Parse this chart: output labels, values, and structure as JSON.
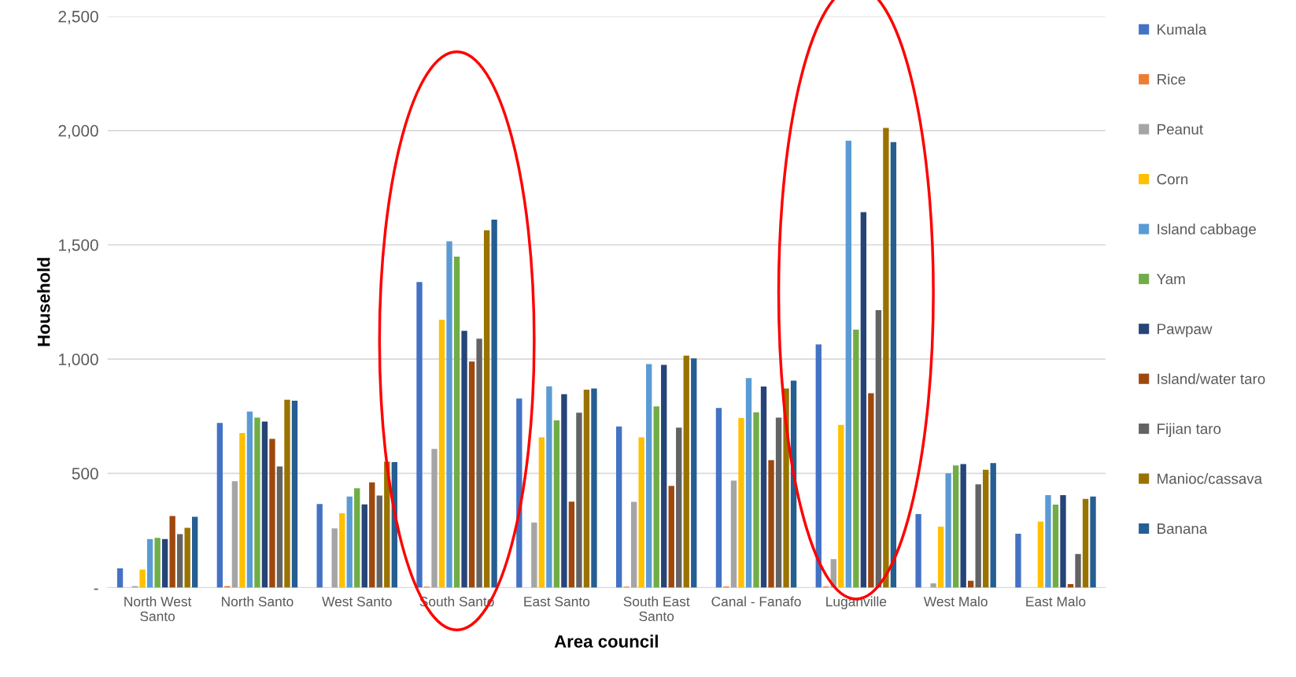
{
  "chart_data": {
    "type": "bar",
    "xlabel": "Area council",
    "ylabel": "Household",
    "categories": [
      "North West\nSanto",
      "North Santo",
      "West Santo",
      "South Santo",
      "East Santo",
      "South East\nSanto",
      "Canal - Fanafo",
      "Luganville",
      "West Malo",
      "East Malo"
    ],
    "series": [
      {
        "name": "Kumala",
        "color": "#4472c4",
        "values": [
          84,
          721,
          366,
          1337,
          827,
          705,
          786,
          1064,
          322,
          236
        ]
      },
      {
        "name": "Rice",
        "color": "#ed7d31",
        "values": [
          0,
          7,
          0,
          4,
          0,
          4,
          5,
          5,
          0,
          0
        ]
      },
      {
        "name": "Peanut",
        "color": "#a5a5a5",
        "values": [
          7,
          466,
          259,
          607,
          285,
          375,
          468,
          125,
          19,
          0
        ]
      },
      {
        "name": "Corn",
        "color": "#ffc000",
        "values": [
          79,
          677,
          325,
          1172,
          658,
          658,
          742,
          712,
          267,
          289
        ]
      },
      {
        "name": "Island cabbage",
        "color": "#5b9bd5",
        "values": [
          213,
          771,
          399,
          1515,
          881,
          978,
          917,
          1955,
          500,
          405
        ]
      },
      {
        "name": "Yam",
        "color": "#70ad47",
        "values": [
          218,
          744,
          435,
          1448,
          732,
          793,
          767,
          1129,
          535,
          363
        ]
      },
      {
        "name": "Pawpaw",
        "color": "#264478",
        "values": [
          213,
          727,
          364,
          1124,
          846,
          975,
          880,
          1643,
          541,
          405
        ]
      },
      {
        "name": "Island/water taro",
        "color": "#9e480e",
        "values": [
          313,
          651,
          461,
          989,
          376,
          445,
          558,
          851,
          30,
          15
        ]
      },
      {
        "name": "Fijian taro",
        "color": "#636363",
        "values": [
          234,
          530,
          403,
          1089,
          765,
          700,
          744,
          1214,
          452,
          147
        ]
      },
      {
        "name": "Manioc/cassava",
        "color": "#997300",
        "values": [
          262,
          822,
          551,
          1564,
          866,
          1015,
          871,
          2011,
          516,
          388
        ]
      },
      {
        "name": "Banana",
        "color": "#255e91",
        "values": [
          310,
          818,
          549,
          1610,
          871,
          1003,
          906,
          1949,
          545,
          399
        ]
      }
    ],
    "ylim": [
      0,
      2500
    ],
    "yticks": [
      {
        "value": 0,
        "label": "-"
      },
      500,
      {
        "value": 1000,
        "label": "1,000"
      },
      {
        "value": 1500,
        "label": "1,500"
      },
      {
        "value": 2000,
        "label": "2,000"
      },
      {
        "value": 2500,
        "label": "2,500"
      }
    ],
    "grid": "y",
    "legend": "right"
  }
}
